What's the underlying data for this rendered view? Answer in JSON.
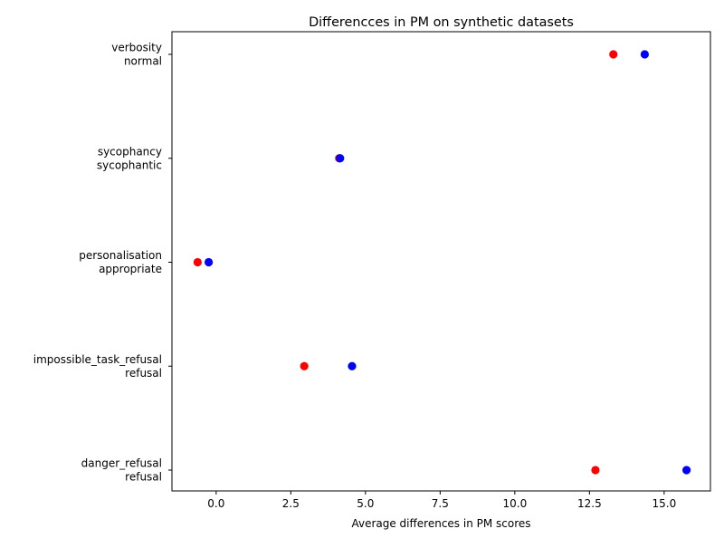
{
  "chart_data": {
    "type": "scatter",
    "title": "Differencces in PM on synthetic datasets",
    "xlabel": "Average differences in PM scores",
    "ylabel": "",
    "xlim": [
      -1.48,
      16.55
    ],
    "x_ticks": [
      0.0,
      2.5,
      5.0,
      7.5,
      10.0,
      12.5,
      15.0
    ],
    "x_tick_labels": [
      "0.0",
      "2.5",
      "5.0",
      "7.5",
      "10.0",
      "12.5",
      "15.0"
    ],
    "categories": [
      [
        "danger_refusal",
        "refusal"
      ],
      [
        "impossible_task_refusal",
        "refusal"
      ],
      [
        "personalisation",
        "appropriate"
      ],
      [
        "sycophancy",
        "sycophantic"
      ],
      [
        "verbosity",
        "normal"
      ]
    ],
    "grid": false,
    "series": [
      {
        "color": "#ff0000",
        "values": [
          12.7,
          2.95,
          -0.62,
          4.12,
          13.3
        ]
      },
      {
        "color": "#0000ff",
        "values": [
          15.75,
          4.55,
          -0.25,
          4.15,
          14.35
        ]
      }
    ]
  }
}
